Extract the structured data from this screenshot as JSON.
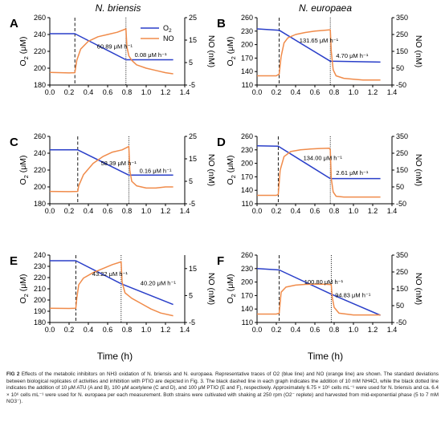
{
  "columns": [
    "N. briensis",
    "N. europaea"
  ],
  "x_axis_title": "Time (h)",
  "legend": [
    {
      "name": "O2",
      "color": "#2a3fc9"
    },
    {
      "name": "NO",
      "color": "#f08b4a"
    }
  ],
  "caption": {
    "label": "FIG 2",
    "text": "Effects of the metabolic inhibitors on NH3 oxidation of N. briensis and N. europaea. Representative traces of O2 (blue line) and NO (orange line) are shown. The standard deviations between biological replicates of activities and inhibition with PTIO are depicted in Fig. 3. The black dashed line in each graph indicates the addition of 10 mM NH4Cl, while the black dotted line indicates the addition of 10 μM ATU (A and B), 100 μM acetylene (C and D), and 100 μM PTIO (E and F), respectively. Approximately 6.75 × 10⁶ cells mL⁻¹ were used for N. briensis and ca. 6.4 × 10⁶ cells mL⁻¹ were used for N. europaea per each measurement. Both strains were cultivated with shaking at 250 rpm (O2⁻ replete) and harvested from mid-exponential phase (5 to 7 mM NO3⁻)."
  },
  "chart_data": [
    {
      "panel": "A",
      "type": "line",
      "xlabel": "",
      "ylabel": "O2 (μM)",
      "y2label": "NO (nM)",
      "xlim": [
        0.0,
        1.4
      ],
      "xticks": [
        "0.0",
        "0.2",
        "0.4",
        "0.6",
        "0.8",
        "1.0",
        "1.2",
        "1.4"
      ],
      "ylim": [
        180,
        260
      ],
      "yticks": [
        "180",
        "200",
        "220",
        "240",
        "260"
      ],
      "y2lim": [
        -5,
        25
      ],
      "y2ticks": [
        "-5",
        "5",
        "15",
        "25"
      ],
      "dashed_x": 0.26,
      "dotted_x": 0.79,
      "annotations": [
        {
          "text": "60.89 μM h⁻¹",
          "x": 0.49,
          "y": 223.2
        },
        {
          "text": "0.08 μM h⁻¹",
          "x": 0.88,
          "y": 213.3
        }
      ],
      "series": [
        {
          "name": "O2",
          "axis": "left",
          "x": [
            0.0,
            0.26,
            0.79,
            1.28
          ],
          "y": [
            241,
            241,
            210,
            210
          ]
        },
        {
          "name": "NO",
          "axis": "right",
          "x": [
            0.0,
            0.2,
            0.26,
            0.28,
            0.32,
            0.4,
            0.5,
            0.6,
            0.7,
            0.79,
            0.8,
            0.82,
            0.85,
            0.9,
            1.0,
            1.1,
            1.2,
            1.28
          ],
          "y": [
            0.6,
            0.4,
            0.5,
            6,
            11,
            14.5,
            16.5,
            17.5,
            18.5,
            20,
            12,
            8,
            6,
            4,
            2.5,
            1.5,
            0.5,
            0
          ]
        }
      ]
    },
    {
      "panel": "B",
      "type": "line",
      "xlabel": "",
      "ylabel": "O2 (μM)",
      "y2label": "NO (nM)",
      "xlim": [
        0.0,
        1.4
      ],
      "xticks": [
        "0.0",
        "0.2",
        "0.4",
        "0.6",
        "0.8",
        "1.0",
        "1.2",
        "1.4"
      ],
      "ylim": [
        110,
        260
      ],
      "yticks": [
        "110",
        "140",
        "170",
        "200",
        "230",
        "260"
      ],
      "y2lim": [
        -50,
        350
      ],
      "y2ticks": [
        "-50",
        "50",
        "150",
        "250",
        "350"
      ],
      "dashed_x": 0.23,
      "dotted_x": 0.76,
      "annotations": [
        {
          "text": "131.65 μM h⁻¹",
          "x": 0.44,
          "y": 205
        },
        {
          "text": "4.70 μM h⁻¹",
          "x": 0.82,
          "y": 170.5
        }
      ],
      "series": [
        {
          "name": "O2",
          "axis": "left",
          "x": [
            0.0,
            0.23,
            0.76,
            1.28
          ],
          "y": [
            235,
            232,
            163,
            161
          ]
        },
        {
          "name": "NO",
          "axis": "right",
          "x": [
            0.0,
            0.2,
            0.23,
            0.25,
            0.28,
            0.32,
            0.4,
            0.5,
            0.6,
            0.7,
            0.76,
            0.77,
            0.79,
            0.82,
            0.9,
            1.0,
            1.1,
            1.28
          ],
          "y": [
            5,
            5,
            15,
            120,
            200,
            230,
            250,
            262,
            270,
            275,
            278,
            150,
            40,
            5,
            -10,
            -15,
            -20,
            -20
          ]
        }
      ]
    },
    {
      "panel": "C",
      "type": "line",
      "xlabel": "",
      "ylabel": "O2 (μM)",
      "y2label": "NO (nM)",
      "xlim": [
        0.0,
        1.4
      ],
      "xticks": [
        "0.0",
        "0.2",
        "0.4",
        "0.6",
        "0.8",
        "1.0",
        "1.2",
        "1.4"
      ],
      "ylim": [
        180,
        260
      ],
      "yticks": [
        "180",
        "200",
        "220",
        "240",
        "260"
      ],
      "y2lim": [
        -5,
        25
      ],
      "y2ticks": [
        "-5",
        "5",
        "15",
        "25"
      ],
      "dashed_x": 0.29,
      "dotted_x": 0.82,
      "annotations": [
        {
          "text": "58.39 μM h⁻¹",
          "x": 0.53,
          "y": 225.7
        },
        {
          "text": "0.16 μM h⁻¹",
          "x": 0.93,
          "y": 216.5
        }
      ],
      "series": [
        {
          "name": "O2",
          "axis": "left",
          "x": [
            0.0,
            0.29,
            0.82,
            1.28
          ],
          "y": [
            244,
            244,
            214,
            214
          ]
        },
        {
          "name": "NO",
          "axis": "right",
          "x": [
            0.0,
            0.2,
            0.29,
            0.3,
            0.35,
            0.45,
            0.55,
            0.65,
            0.75,
            0.82,
            0.83,
            0.85,
            0.9,
            1.0,
            1.1,
            1.2,
            1.28
          ],
          "y": [
            0.5,
            0.4,
            0.5,
            3,
            8,
            13,
            16,
            18,
            19,
            20.5,
            10,
            5,
            3,
            2,
            2,
            2.5,
            2.5
          ]
        }
      ]
    },
    {
      "panel": "D",
      "type": "line",
      "xlabel": "",
      "ylabel": "O2 (μM)",
      "y2label": "NO (nM)",
      "xlim": [
        0.0,
        1.4
      ],
      "xticks": [
        "0.0",
        "0.2",
        "0.4",
        "0.6",
        "0.8",
        "1.0",
        "1.2",
        "1.4"
      ],
      "ylim": [
        110,
        260
      ],
      "yticks": [
        "110",
        "140",
        "170",
        "200",
        "230",
        "260"
      ],
      "y2lim": [
        -50,
        350
      ],
      "y2ticks": [
        "-50",
        "50",
        "150",
        "250",
        "350"
      ],
      "dashed_x": 0.22,
      "dotted_x": 0.76,
      "annotations": [
        {
          "text": "134.00 μM h⁻¹",
          "x": 0.48,
          "y": 207
        },
        {
          "text": "2.61 μM h⁻¹",
          "x": 0.82,
          "y": 174.7
        }
      ],
      "series": [
        {
          "name": "O2",
          "axis": "left",
          "x": [
            0.0,
            0.22,
            0.76,
            1.28
          ],
          "y": [
            239,
            238,
            166,
            166
          ]
        },
        {
          "name": "NO",
          "axis": "right",
          "x": [
            0.0,
            0.2,
            0.22,
            0.24,
            0.28,
            0.35,
            0.45,
            0.55,
            0.65,
            0.75,
            0.76,
            0.77,
            0.79,
            0.82,
            0.9,
            1.0,
            1.28
          ],
          "y": [
            0,
            0,
            5,
            150,
            230,
            260,
            270,
            275,
            278,
            280,
            270,
            100,
            20,
            -5,
            -10,
            -10,
            -10
          ]
        }
      ]
    },
    {
      "panel": "E",
      "type": "line",
      "xlabel": "",
      "ylabel": "O2 (μM)",
      "y2label": "NO (nM)",
      "xlim": [
        0.0,
        1.4
      ],
      "xticks": [
        "0.0",
        "0.2",
        "0.4",
        "0.6",
        "0.8",
        "1.0",
        "1.2",
        "1.4"
      ],
      "ylim": [
        180,
        240
      ],
      "yticks": [
        "180",
        "190",
        "200",
        "210",
        "220",
        "230",
        "240"
      ],
      "y2lim": [
        -5,
        20
      ],
      "y2ticks": [
        "-5",
        "5",
        "15"
      ],
      "dashed_x": 0.27,
      "dotted_x": 0.74,
      "annotations": [
        {
          "text": "43.22 μM h⁻¹",
          "x": 0.44,
          "y": 221.5
        },
        {
          "text": "40.20 μM h⁻¹",
          "x": 0.94,
          "y": 213.2
        }
      ],
      "series": [
        {
          "name": "O2",
          "axis": "left",
          "x": [
            0.0,
            0.27,
            0.74,
            1.28
          ],
          "y": [
            235,
            235,
            214.5,
            196
          ]
        },
        {
          "name": "NO",
          "axis": "right",
          "x": [
            0.0,
            0.2,
            0.27,
            0.28,
            0.3,
            0.35,
            0.45,
            0.55,
            0.65,
            0.74,
            0.75,
            0.78,
            0.85,
            0.95,
            1.05,
            1.15,
            1.28
          ],
          "y": [
            0.3,
            0.2,
            0.3,
            4,
            9,
            11.5,
            13.5,
            15,
            16.5,
            17.5,
            10,
            6,
            4,
            2,
            0,
            -1.5,
            -2.5
          ]
        }
      ]
    },
    {
      "panel": "F",
      "type": "line",
      "xlabel": "",
      "ylabel": "O2 (μM)",
      "y2label": "NO (nM)",
      "xlim": [
        0.0,
        1.4
      ],
      "xticks": [
        "0.0",
        "0.2",
        "0.4",
        "0.6",
        "0.8",
        "1.0",
        "1.2",
        "1.4"
      ],
      "ylim": [
        110,
        260
      ],
      "yticks": [
        "110",
        "140",
        "170",
        "200",
        "230",
        "260"
      ],
      "y2lim": [
        -50,
        350
      ],
      "y2ticks": [
        "-50",
        "50",
        "150",
        "250",
        "350"
      ],
      "dashed_x": 0.23,
      "dotted_x": 0.77,
      "annotations": [
        {
          "text": "100.80 μM h⁻¹",
          "x": 0.49,
          "y": 196
        },
        {
          "text": "94.83 μM h⁻¹",
          "x": 0.81,
          "y": 166
        }
      ],
      "series": [
        {
          "name": "O2",
          "axis": "left",
          "x": [
            0.0,
            0.23,
            0.77,
            1.28
          ],
          "y": [
            230,
            227,
            173,
            126
          ]
        },
        {
          "name": "NO",
          "axis": "right",
          "x": [
            0.0,
            0.2,
            0.23,
            0.25,
            0.3,
            0.4,
            0.5,
            0.6,
            0.7,
            0.77,
            0.78,
            0.8,
            0.85,
            1.0,
            1.28
          ],
          "y": [
            0,
            0,
            5,
            130,
            160,
            172,
            176,
            178,
            177,
            175,
            100,
            40,
            5,
            -5,
            -5
          ]
        }
      ]
    }
  ]
}
